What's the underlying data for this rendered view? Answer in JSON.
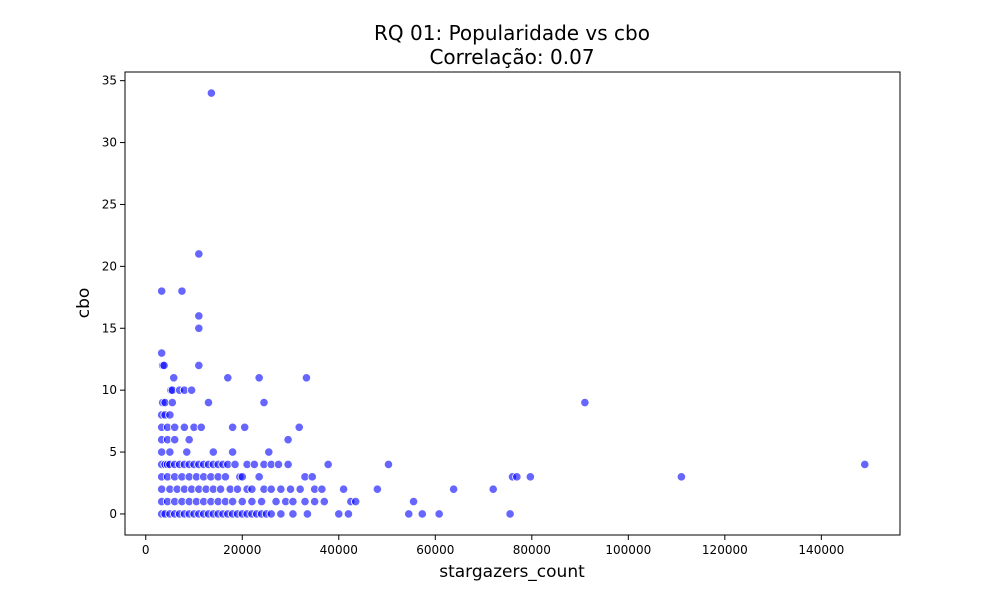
{
  "chart_data": {
    "type": "scatter",
    "title": "RQ 01: Popularidade vs cbo",
    "subtitle": "Correlação: 0.07",
    "xlabel": "stargazers_count",
    "ylabel": "cbo",
    "xlim": [
      -4300,
      156300
    ],
    "ylim": [
      -1.7,
      35.7
    ],
    "x_ticks": [
      0,
      20000,
      40000,
      60000,
      80000,
      100000,
      120000,
      140000
    ],
    "y_ticks": [
      0,
      5,
      10,
      15,
      20,
      25,
      30,
      35
    ],
    "grid": false,
    "marker_color": "#0000ff",
    "marker_opacity": 0.6,
    "marker_edge_color": "#ffffff",
    "series": [
      {
        "x": [
          13600,
          11000,
          3300,
          7500,
          11000,
          11000,
          3300,
          3500,
          3800,
          11000,
          5800,
          17000,
          23500,
          33300,
          5200,
          5500,
          7000,
          8000,
          9500,
          3500,
          4000,
          5500,
          13000,
          24500,
          91000,
          3300,
          4000,
          5000,
          3300,
          4500,
          6000,
          8000,
          10000,
          11500,
          18000,
          20500,
          31800,
          3300,
          4500,
          6000,
          9000,
          29500,
          3300,
          5000,
          8500,
          14000,
          18000,
          25500,
          50300,
          149000,
          3300,
          4000,
          4500,
          5000,
          6000,
          7000,
          8000,
          9000,
          10000,
          11000,
          12000,
          13000,
          14000,
          15000,
          16000,
          17000,
          18500,
          21000,
          22500,
          24500,
          26000,
          27500,
          29500,
          37800,
          3300,
          4500,
          6000,
          7500,
          9000,
          10500,
          12000,
          13500,
          15000,
          16500,
          19500,
          20000,
          23500,
          33000,
          34500,
          76000,
          76900,
          79700,
          111000,
          3300,
          5000,
          6500,
          8000,
          9500,
          11000,
          12500,
          14000,
          15500,
          17500,
          19000,
          21000,
          22000,
          24500,
          26000,
          28000,
          30000,
          32000,
          35000,
          36500,
          41000,
          48000,
          63800,
          72000,
          3300,
          4500,
          6000,
          7500,
          9000,
          10500,
          12000,
          13500,
          15000,
          16500,
          18000,
          20000,
          22000,
          24000,
          27000,
          29000,
          30500,
          33000,
          35000,
          37000,
          42500,
          43500,
          55500,
          3300,
          4000,
          5000,
          6000,
          7000,
          8000,
          9000,
          10000,
          11000,
          12000,
          13000,
          14000,
          15000,
          16000,
          17000,
          18000,
          19000,
          20000,
          21000,
          22000,
          23000,
          24000,
          25000,
          26000,
          28000,
          30500,
          33500,
          40000,
          42000,
          54500,
          57300,
          60800,
          75500
        ],
        "y": [
          34,
          21,
          18,
          18,
          16,
          15,
          13,
          12,
          12,
          12,
          11,
          11,
          11,
          11,
          10,
          10,
          10,
          10,
          10,
          9,
          9,
          9,
          9,
          9,
          9,
          8,
          8,
          8,
          7,
          7,
          7,
          7,
          7,
          7,
          7,
          7,
          7,
          6,
          6,
          6,
          6,
          6,
          5,
          5,
          5,
          5,
          5,
          5,
          4,
          4,
          4,
          4,
          4,
          4,
          4,
          4,
          4,
          4,
          4,
          4,
          4,
          4,
          4,
          4,
          4,
          4,
          4,
          4,
          4,
          4,
          4,
          4,
          4,
          4,
          3,
          3,
          3,
          3,
          3,
          3,
          3,
          3,
          3,
          3,
          3,
          3,
          3,
          3,
          3,
          3,
          3,
          3,
          3,
          2,
          2,
          2,
          2,
          2,
          2,
          2,
          2,
          2,
          2,
          2,
          2,
          2,
          2,
          2,
          2,
          2,
          2,
          2,
          2,
          2,
          2,
          2,
          2,
          1,
          1,
          1,
          1,
          1,
          1,
          1,
          1,
          1,
          1,
          1,
          1,
          1,
          1,
          1,
          1,
          1,
          1,
          1,
          1,
          1,
          1,
          1,
          0,
          0,
          0,
          0,
          0,
          0,
          0,
          0,
          0,
          0,
          0,
          0,
          0,
          0,
          0,
          0,
          0,
          0,
          0,
          0,
          0,
          0,
          0,
          0,
          0,
          0,
          0,
          0,
          0,
          0,
          0,
          0,
          0
        ]
      }
    ]
  }
}
